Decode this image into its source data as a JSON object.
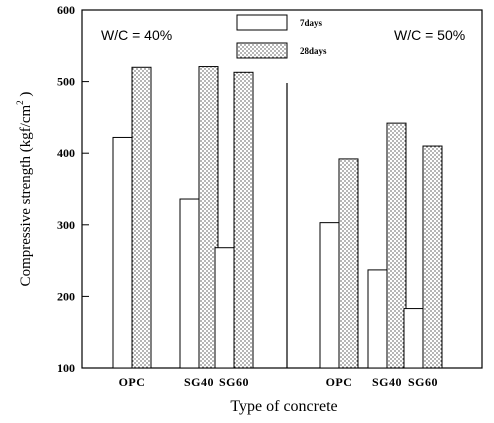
{
  "chart_data": {
    "type": "bar",
    "categories": [
      "OPC",
      "SG40",
      "SG60",
      "OPC",
      "SG40",
      "SG60"
    ],
    "groups": [
      {
        "label": "W/C = 40%",
        "categories": [
          "OPC",
          "SG40",
          "SG60"
        ]
      },
      {
        "label": "W/C = 50%",
        "categories": [
          "OPC",
          "SG40",
          "SG60"
        ]
      }
    ],
    "series": [
      {
        "name": "7days",
        "values": [
          422,
          336,
          268,
          303,
          237,
          183
        ],
        "fill": "white"
      },
      {
        "name": "28days",
        "values": [
          520,
          521,
          513,
          392,
          442,
          410
        ],
        "fill": "dotted"
      }
    ],
    "ylabel": "Compressive strength (kgf/cm",
    "ylabel_superscript": "2",
    "ylabel_tail": " )",
    "xlabel": "Type of concrete",
    "ylim": [
      100,
      600
    ],
    "yticks": [
      100,
      200,
      300,
      400,
      500,
      600
    ],
    "legend_position": "top-center",
    "grid": false
  }
}
